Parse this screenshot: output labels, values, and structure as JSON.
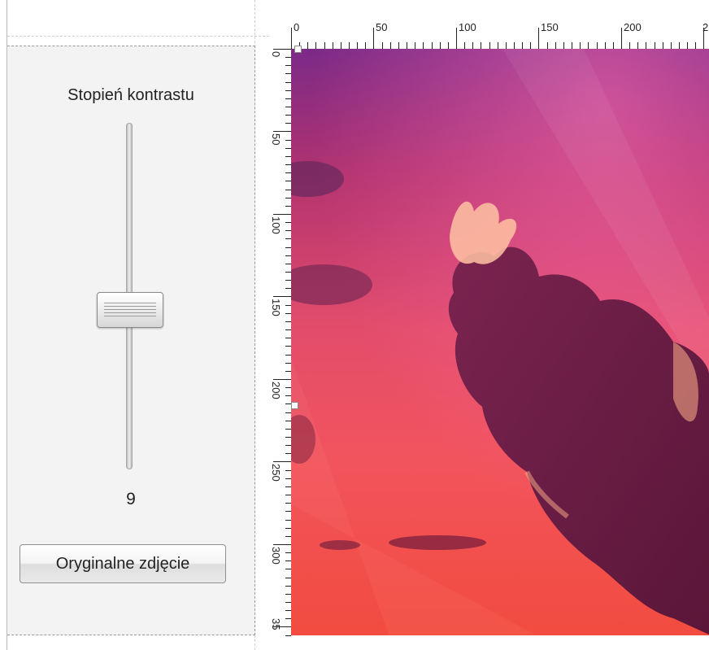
{
  "panel": {
    "title": "Stopień kontrastu",
    "slider_value": "9",
    "button_label": "Oryginalne zdjęcie"
  },
  "slider": {
    "value": 9,
    "fill_fraction": 0.49
  },
  "rulers": {
    "top_labels": [
      "0",
      "50",
      "100",
      "150",
      "200",
      "2"
    ],
    "left_labels": [
      "0",
      "50",
      "100",
      "150",
      "200",
      "250",
      "300",
      "35"
    ]
  },
  "colors": {
    "sky_top": "#7b2a87",
    "sky_mid": "#e34d6b",
    "sky_bottom": "#f24c3f",
    "cloud_dark": "#6f1d4a",
    "cloud_highlight": "#ffd7a8"
  },
  "icons": {
    "slider_thumb": "slider-thumb-icon",
    "selection_handle": "selection-handle-icon"
  }
}
